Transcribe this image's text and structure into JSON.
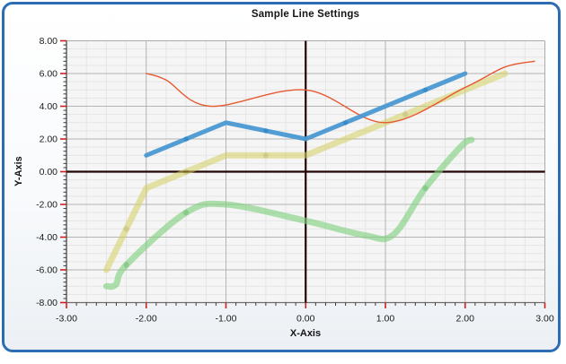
{
  "window": {
    "border_color_note": "rounded blue frame"
  },
  "chart_data": {
    "type": "line",
    "title": "Sample Line Settings",
    "xlabel": "X-Axis",
    "ylabel": "Y-Axis",
    "xlim": [
      -3,
      3
    ],
    "ylim": [
      -8,
      8
    ],
    "legend": "none",
    "x_axis": {
      "tick_values": [
        -3,
        -2,
        -1,
        0,
        1,
        2,
        3
      ],
      "tick_labels": [
        "-3.00",
        "-2.00",
        "-1.00",
        "0.00",
        "1.00",
        "2.00",
        "3.00"
      ],
      "minor_tick_step": 0.125
    },
    "y_axis": {
      "tick_values": [
        8,
        6,
        4,
        2,
        0,
        -2,
        -4,
        -6,
        -8
      ],
      "tick_labels": [
        "8.00",
        "6.00",
        "4.00",
        "2.00",
        "0.00",
        "-2.00",
        "-4.00",
        "-6.00",
        "-8.00"
      ],
      "minor_tick_step": 0.25
    },
    "grid": {
      "x_minor_step": 0.25,
      "x_major_step": 1,
      "y_minor_step": 0.5,
      "y_major_step": 2
    },
    "colors": {
      "window_border": "#2c6cb4",
      "title_color": "#141414",
      "axis_label_color": "#141414",
      "tick_label": "#1a1a1a",
      "plot_bg": "#f5f5f5",
      "minor_grid": "#e5e5e5",
      "major_grid": "#b4b4b4",
      "plot_border": "#ababab",
      "axis_line_left": "#3c3c3c",
      "axis_line_bottom": "#6e6e6e",
      "zero_line": "#230404",
      "major_tick": "#cc2020",
      "minor_tick": "#3a3a3a"
    },
    "series": [
      {
        "name": "thick-yellow-line",
        "type": "line",
        "color": "#d5cf63",
        "width": 7,
        "opacity": 0.55,
        "points": [
          [
            -2.5,
            -6
          ],
          [
            -2,
            -1
          ],
          [
            -1,
            1
          ],
          [
            0,
            1
          ],
          [
            2.5,
            6
          ]
        ],
        "markers": [
          [
            -2.25,
            -3.5
          ],
          [
            -1.5,
            0
          ],
          [
            -0.5,
            1
          ],
          [
            1.25,
            3.5
          ]
        ],
        "marker_color": "#b9b13a",
        "marker_r": 3.2
      },
      {
        "name": "thick-green-spline",
        "type": "spline",
        "color": "#7fd07f",
        "width": 7,
        "opacity": 0.62,
        "points": [
          [
            -2.5,
            -7
          ],
          [
            -2.38,
            -6.9
          ],
          [
            -2.25,
            -5.7
          ],
          [
            -1.5,
            -2.5
          ],
          [
            -1,
            -2
          ],
          [
            0,
            -3
          ],
          [
            0.75,
            -3.9
          ],
          [
            1.1,
            -3.85
          ],
          [
            1.5,
            -1
          ],
          [
            1.95,
            1.55
          ],
          [
            2.08,
            1.95
          ]
        ],
        "markers": [
          [
            -2.25,
            -5.7
          ],
          [
            -1.5,
            -2.5
          ],
          [
            1.5,
            -1
          ]
        ],
        "marker_color": "#4fb54f",
        "marker_r": 3.2
      },
      {
        "name": "thin-red-spline",
        "type": "spline",
        "color": "#e65a32",
        "width": 1.4,
        "opacity": 1,
        "points": [
          [
            -2,
            6
          ],
          [
            -1.75,
            5.6
          ],
          [
            -1.2,
            4
          ],
          [
            0,
            5
          ],
          [
            1,
            3
          ],
          [
            2,
            5.15
          ],
          [
            2.5,
            6.4
          ],
          [
            2.87,
            6.75
          ]
        ],
        "markers": [],
        "marker_color": "#e65a32",
        "marker_r": 0
      },
      {
        "name": "thick-blue-line",
        "type": "line",
        "color": "#4a99d3",
        "width": 5,
        "opacity": 0.95,
        "points": [
          [
            -2,
            1
          ],
          [
            -1,
            3
          ],
          [
            0,
            2
          ],
          [
            2,
            6
          ]
        ],
        "markers": [
          [
            -1.5,
            2
          ],
          [
            -0.5,
            2.5
          ],
          [
            0.5,
            3
          ],
          [
            1.5,
            5
          ]
        ],
        "marker_color": "#2e86c6",
        "marker_r": 2.6
      }
    ]
  }
}
